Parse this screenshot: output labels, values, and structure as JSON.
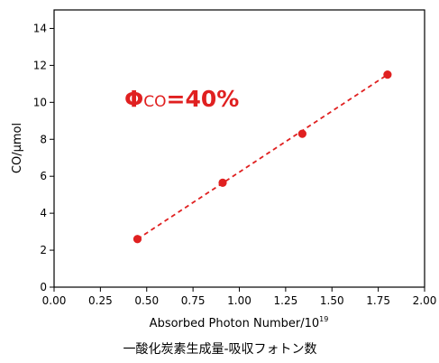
{
  "chart_data": {
    "type": "scatter",
    "title": "",
    "xlabel": "Absorbed Photon Number/10",
    "xlabel_sup": "19",
    "ylabel": "CO/µmol",
    "xlim": [
      0,
      2
    ],
    "ylim": [
      0,
      15
    ],
    "xticks": [
      "0.00",
      "0.25",
      "0.50",
      "0.75",
      "1.00",
      "1.25",
      "1.50",
      "1.75",
      "2.00"
    ],
    "yticks": [
      "0",
      "2",
      "4",
      "6",
      "8",
      "10",
      "12",
      "14"
    ],
    "points": [
      {
        "x": 0.45,
        "y": 2.6
      },
      {
        "x": 0.91,
        "y": 5.65
      },
      {
        "x": 1.34,
        "y": 8.3
      },
      {
        "x": 1.8,
        "y": 11.5
      }
    ],
    "fit_line": {
      "x": [
        0.45,
        1.8
      ],
      "y": [
        2.6,
        11.5
      ],
      "style": "dashed"
    },
    "annotation": {
      "phi": "Φ",
      "sub": "CO",
      "text": "=40%"
    },
    "color": "#e02020",
    "grid": false
  },
  "caption": "一酸化炭素生成量-吸収フォトン数"
}
